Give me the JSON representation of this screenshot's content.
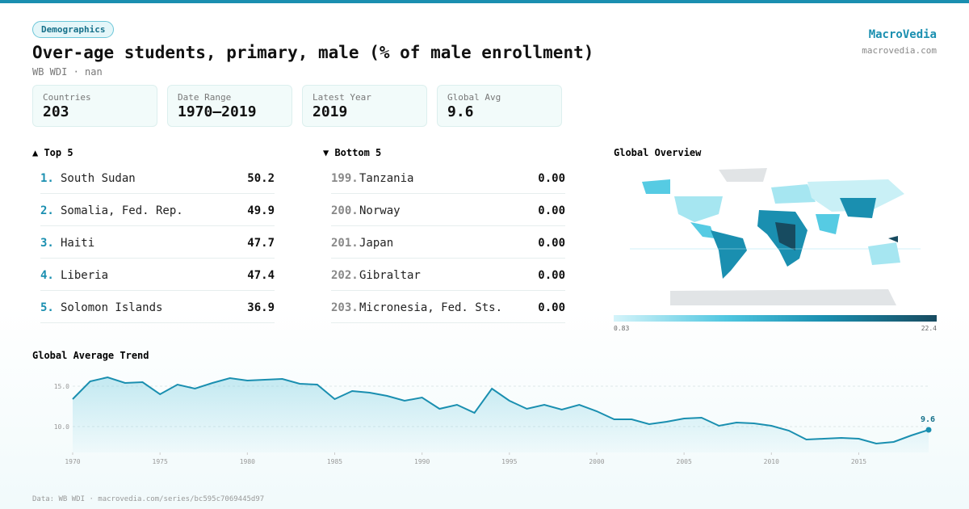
{
  "header": {
    "badge": "Demographics",
    "title": "Over-age students, primary, male (% of male enrollment)",
    "subtitle": "WB WDI · nan",
    "brand": "MacroVedia",
    "site": "macrovedia.com"
  },
  "stats": [
    {
      "label": "Countries",
      "value": "203"
    },
    {
      "label": "Date Range",
      "value": "1970–2019"
    },
    {
      "label": "Latest Year",
      "value": "2019"
    },
    {
      "label": "Global Avg",
      "value": "9.6"
    }
  ],
  "top": {
    "title": "▲ Top 5",
    "rows": [
      {
        "rank": "1.",
        "name": "South Sudan",
        "value": "50.2"
      },
      {
        "rank": "2.",
        "name": "Somalia, Fed. Rep.",
        "value": "49.9"
      },
      {
        "rank": "3.",
        "name": "Haiti",
        "value": "47.7"
      },
      {
        "rank": "4.",
        "name": "Liberia",
        "value": "47.4"
      },
      {
        "rank": "5.",
        "name": "Solomon Islands",
        "value": "36.9"
      }
    ]
  },
  "bottom": {
    "title": "▼ Bottom 5",
    "rows": [
      {
        "rank": "199.",
        "name": "Tanzania",
        "value": "0.00"
      },
      {
        "rank": "200.",
        "name": "Norway",
        "value": "0.00"
      },
      {
        "rank": "201.",
        "name": "Japan",
        "value": "0.00"
      },
      {
        "rank": "202.",
        "name": "Gibraltar",
        "value": "0.00"
      },
      {
        "rank": "203.",
        "name": "Micronesia, Fed. Sts.",
        "value": "0.00"
      }
    ]
  },
  "map": {
    "title": "Global Overview",
    "min_label": "0.83",
    "max_label": "22.4"
  },
  "chart_data": {
    "type": "line",
    "title": "Global Average Trend",
    "color": "#1a8fb0",
    "x": [
      1970,
      1971,
      1972,
      1973,
      1974,
      1975,
      1976,
      1977,
      1978,
      1979,
      1980,
      1981,
      1982,
      1983,
      1984,
      1985,
      1986,
      1987,
      1988,
      1989,
      1990,
      1991,
      1992,
      1993,
      1994,
      1995,
      1996,
      1997,
      1998,
      1999,
      2000,
      2001,
      2002,
      2003,
      2004,
      2005,
      2006,
      2007,
      2008,
      2009,
      2010,
      2011,
      2012,
      2013,
      2014,
      2015,
      2016,
      2017,
      2018,
      2019
    ],
    "values": [
      13.4,
      15.6,
      16.1,
      15.4,
      15.5,
      14.0,
      15.2,
      14.7,
      15.4,
      16.0,
      15.7,
      15.8,
      15.9,
      15.3,
      15.2,
      13.4,
      14.4,
      14.2,
      13.8,
      13.2,
      13.6,
      12.2,
      12.7,
      11.7,
      14.7,
      13.2,
      12.2,
      12.7,
      12.1,
      12.7,
      11.9,
      10.9,
      10.9,
      10.3,
      10.6,
      11.0,
      11.1,
      10.1,
      10.5,
      10.4,
      10.1,
      9.5,
      8.4,
      8.5,
      8.6,
      8.5,
      7.9,
      8.1,
      8.9,
      9.6
    ],
    "xlim": [
      1970,
      2019
    ],
    "xticks": [
      1970,
      1975,
      1980,
      1985,
      1990,
      1995,
      2000,
      2005,
      2010,
      2015
    ],
    "ylim": [
      6.8,
      16.8
    ],
    "yticks": [
      {
        "value": 10,
        "label": "10.0"
      },
      {
        "value": 15,
        "label": "15.0"
      }
    ],
    "grid": true
  },
  "footer": "Data: WB WDI · macrovedia.com/series/bc595c7069445d97"
}
